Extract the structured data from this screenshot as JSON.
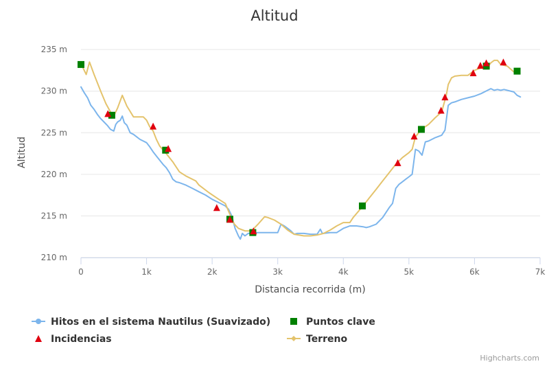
{
  "chart_data": {
    "type": "line",
    "title": "Altitud",
    "xlabel": "Distancia recorrida (m)",
    "ylabel": "Altitud",
    "xlim": [
      0,
      7000
    ],
    "ylim": [
      210,
      236
    ],
    "x_ticks": [
      {
        "value": 0,
        "label": "0"
      },
      {
        "value": 1000,
        "label": "1k"
      },
      {
        "value": 2000,
        "label": "2k"
      },
      {
        "value": 3000,
        "label": "3k"
      },
      {
        "value": 4000,
        "label": "4k"
      },
      {
        "value": 5000,
        "label": "5k"
      },
      {
        "value": 6000,
        "label": "6k"
      },
      {
        "value": 7000,
        "label": "7k"
      }
    ],
    "y_ticks": [
      {
        "value": 210,
        "label": "210 m"
      },
      {
        "value": 215,
        "label": "215 m"
      },
      {
        "value": 220,
        "label": "220 m"
      },
      {
        "value": 225,
        "label": "225 m"
      },
      {
        "value": 230,
        "label": "230 m"
      },
      {
        "value": 235,
        "label": "235 m"
      }
    ],
    "grid": true,
    "legend_position": "bottom",
    "series": [
      {
        "name": "Hitos en el sistema Nautilus (Suavizado)",
        "kind": "line",
        "color": "#7cb5ec",
        "points": [
          [
            0,
            230.5
          ],
          [
            50,
            229.8
          ],
          [
            100,
            229.2
          ],
          [
            150,
            228.3
          ],
          [
            200,
            227.8
          ],
          [
            250,
            227.2
          ],
          [
            300,
            226.7
          ],
          [
            350,
            226.3
          ],
          [
            400,
            225.9
          ],
          [
            450,
            225.4
          ],
          [
            500,
            225.2
          ],
          [
            530,
            226.0
          ],
          [
            560,
            226.3
          ],
          [
            600,
            226.5
          ],
          [
            630,
            227.0
          ],
          [
            660,
            226.2
          ],
          [
            700,
            225.9
          ],
          [
            750,
            225.0
          ],
          [
            800,
            224.8
          ],
          [
            850,
            224.5
          ],
          [
            900,
            224.2
          ],
          [
            950,
            224.0
          ],
          [
            1000,
            223.8
          ],
          [
            1050,
            223.3
          ],
          [
            1100,
            222.7
          ],
          [
            1150,
            222.2
          ],
          [
            1200,
            221.7
          ],
          [
            1250,
            221.2
          ],
          [
            1300,
            220.8
          ],
          [
            1350,
            220.2
          ],
          [
            1400,
            219.4
          ],
          [
            1450,
            219.1
          ],
          [
            1500,
            219.0
          ],
          [
            1600,
            218.7
          ],
          [
            1700,
            218.3
          ],
          [
            1800,
            217.9
          ],
          [
            1900,
            217.5
          ],
          [
            2000,
            217.0
          ],
          [
            2100,
            216.6
          ],
          [
            2200,
            216.2
          ],
          [
            2250,
            215.8
          ],
          [
            2300,
            215.0
          ],
          [
            2350,
            213.5
          ],
          [
            2400,
            212.6
          ],
          [
            2430,
            212.2
          ],
          [
            2460,
            212.9
          ],
          [
            2500,
            212.6
          ],
          [
            2550,
            212.9
          ],
          [
            2600,
            212.9
          ],
          [
            2700,
            213.0
          ],
          [
            2800,
            213.0
          ],
          [
            2900,
            213.0
          ],
          [
            2950,
            213.0
          ],
          [
            3000,
            213.0
          ],
          [
            3050,
            214.0
          ],
          [
            3100,
            213.8
          ],
          [
            3150,
            213.5
          ],
          [
            3200,
            213.2
          ],
          [
            3250,
            212.8
          ],
          [
            3300,
            212.9
          ],
          [
            3400,
            212.9
          ],
          [
            3500,
            212.8
          ],
          [
            3600,
            212.8
          ],
          [
            3650,
            213.4
          ],
          [
            3680,
            212.9
          ],
          [
            3700,
            212.9
          ],
          [
            3800,
            213.0
          ],
          [
            3900,
            213.0
          ],
          [
            4000,
            213.5
          ],
          [
            4100,
            213.8
          ],
          [
            4200,
            213.8
          ],
          [
            4300,
            213.7
          ],
          [
            4350,
            213.6
          ],
          [
            4400,
            213.7
          ],
          [
            4500,
            214.0
          ],
          [
            4600,
            214.8
          ],
          [
            4700,
            216.0
          ],
          [
            4750,
            216.5
          ],
          [
            4800,
            218.3
          ],
          [
            4850,
            218.8
          ],
          [
            4900,
            219.1
          ],
          [
            4950,
            219.4
          ],
          [
            5000,
            219.7
          ],
          [
            5050,
            220.0
          ],
          [
            5100,
            223.0
          ],
          [
            5150,
            222.8
          ],
          [
            5200,
            222.3
          ],
          [
            5250,
            223.9
          ],
          [
            5300,
            224.0
          ],
          [
            5400,
            224.4
          ],
          [
            5500,
            224.7
          ],
          [
            5550,
            225.3
          ],
          [
            5600,
            228.3
          ],
          [
            5650,
            228.6
          ],
          [
            5700,
            228.7
          ],
          [
            5800,
            229.0
          ],
          [
            5900,
            229.2
          ],
          [
            6000,
            229.4
          ],
          [
            6100,
            229.7
          ],
          [
            6200,
            230.1
          ],
          [
            6250,
            230.3
          ],
          [
            6300,
            230.1
          ],
          [
            6350,
            230.2
          ],
          [
            6400,
            230.1
          ],
          [
            6450,
            230.2
          ],
          [
            6500,
            230.1
          ],
          [
            6600,
            229.9
          ],
          [
            6650,
            229.5
          ],
          [
            6700,
            229.3
          ]
        ]
      },
      {
        "name": "Puntos clave",
        "kind": "marker-square",
        "color": "#008000",
        "points": [
          [
            0,
            233.2
          ],
          [
            470,
            227.1
          ],
          [
            1290,
            222.9
          ],
          [
            2270,
            214.6
          ],
          [
            2620,
            213.0
          ],
          [
            4290,
            216.2
          ],
          [
            5190,
            225.4
          ],
          [
            6180,
            233.0
          ],
          [
            6650,
            232.4
          ]
        ]
      },
      {
        "name": "Incidencias",
        "kind": "marker-triangle",
        "color": "#e0000f",
        "points": [
          [
            410,
            227.3
          ],
          [
            1100,
            225.8
          ],
          [
            1330,
            223.1
          ],
          [
            2070,
            216.0
          ],
          [
            2270,
            214.6
          ],
          [
            2630,
            213.2
          ],
          [
            4830,
            221.4
          ],
          [
            5080,
            224.6
          ],
          [
            5490,
            227.7
          ],
          [
            5550,
            229.3
          ],
          [
            5980,
            232.2
          ],
          [
            6090,
            233.1
          ],
          [
            6180,
            233.4
          ],
          [
            6440,
            233.5
          ]
        ]
      },
      {
        "name": "Terreno",
        "kind": "line-diamond",
        "color": "#e4c36c",
        "points": [
          [
            0,
            233.3
          ],
          [
            80,
            232.0
          ],
          [
            130,
            233.5
          ],
          [
            200,
            232.0
          ],
          [
            300,
            230.0
          ],
          [
            380,
            228.5
          ],
          [
            450,
            227.5
          ],
          [
            500,
            227.0
          ],
          [
            560,
            228.0
          ],
          [
            630,
            229.5
          ],
          [
            700,
            228.2
          ],
          [
            800,
            226.9
          ],
          [
            950,
            226.9
          ],
          [
            1000,
            226.5
          ],
          [
            1050,
            225.7
          ],
          [
            1100,
            225.2
          ],
          [
            1150,
            224.2
          ],
          [
            1200,
            223.4
          ],
          [
            1300,
            222.5
          ],
          [
            1400,
            221.5
          ],
          [
            1500,
            220.3
          ],
          [
            1600,
            219.8
          ],
          [
            1750,
            219.2
          ],
          [
            1800,
            218.7
          ],
          [
            1950,
            217.8
          ],
          [
            2100,
            217.0
          ],
          [
            2200,
            216.5
          ],
          [
            2270,
            215.2
          ],
          [
            2340,
            214.0
          ],
          [
            2400,
            213.5
          ],
          [
            2500,
            213.2
          ],
          [
            2600,
            213.2
          ],
          [
            2700,
            214.0
          ],
          [
            2800,
            214.9
          ],
          [
            2850,
            214.8
          ],
          [
            2950,
            214.5
          ],
          [
            3050,
            214.0
          ],
          [
            3150,
            213.3
          ],
          [
            3250,
            212.8
          ],
          [
            3400,
            212.6
          ],
          [
            3500,
            212.6
          ],
          [
            3600,
            212.7
          ],
          [
            3700,
            212.9
          ],
          [
            3800,
            213.3
          ],
          [
            3900,
            213.8
          ],
          [
            4000,
            214.2
          ],
          [
            4100,
            214.2
          ],
          [
            4150,
            214.8
          ],
          [
            4300,
            216.2
          ],
          [
            4400,
            217.2
          ],
          [
            4500,
            218.2
          ],
          [
            4600,
            219.2
          ],
          [
            4700,
            220.2
          ],
          [
            4800,
            221.2
          ],
          [
            4900,
            222.0
          ],
          [
            5000,
            222.6
          ],
          [
            5050,
            223.0
          ],
          [
            5100,
            224.5
          ],
          [
            5190,
            225.4
          ],
          [
            5300,
            226.0
          ],
          [
            5400,
            226.8
          ],
          [
            5500,
            227.5
          ],
          [
            5570,
            229.5
          ],
          [
            5600,
            230.8
          ],
          [
            5650,
            231.6
          ],
          [
            5700,
            231.8
          ],
          [
            5800,
            231.9
          ],
          [
            5900,
            231.9
          ],
          [
            6000,
            232.5
          ],
          [
            6100,
            232.8
          ],
          [
            6200,
            232.9
          ],
          [
            6250,
            233.4
          ],
          [
            6300,
            233.7
          ],
          [
            6350,
            233.7
          ],
          [
            6400,
            233.2
          ],
          [
            6500,
            233.0
          ],
          [
            6600,
            232.3
          ],
          [
            6650,
            232.3
          ]
        ]
      }
    ],
    "credits": "Highcharts.com"
  }
}
